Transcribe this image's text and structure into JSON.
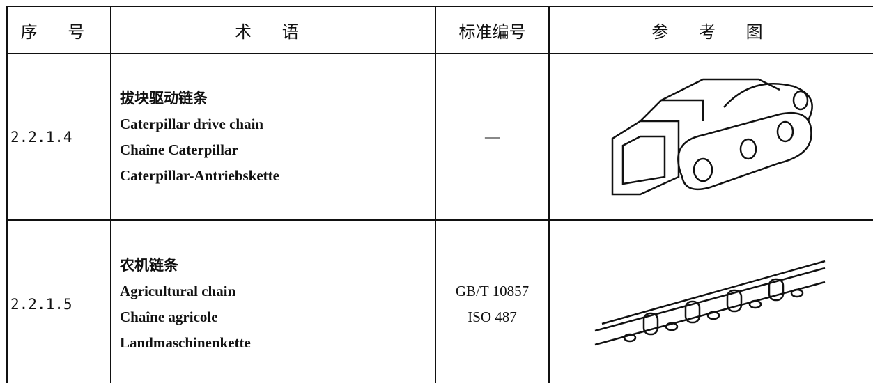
{
  "table": {
    "header": [
      "序 号",
      "术 语",
      "标准编号",
      "参 考 图"
    ],
    "rows": [
      {
        "number": "2.2.1.4",
        "terms": [
          "拔块驱动链条",
          "Caterpillar drive chain",
          "Chaîne Caterpillar",
          "Caterpillar-Antriebskette"
        ],
        "standards": [
          "—"
        ]
      },
      {
        "number": "2.2.1.5",
        "terms": [
          "农机链条",
          "Agricultural chain",
          "Chaîne agricole",
          "Landmaschinenkette"
        ],
        "standards": [
          "GB/T 10857",
          "ISO 487"
        ]
      }
    ]
  }
}
